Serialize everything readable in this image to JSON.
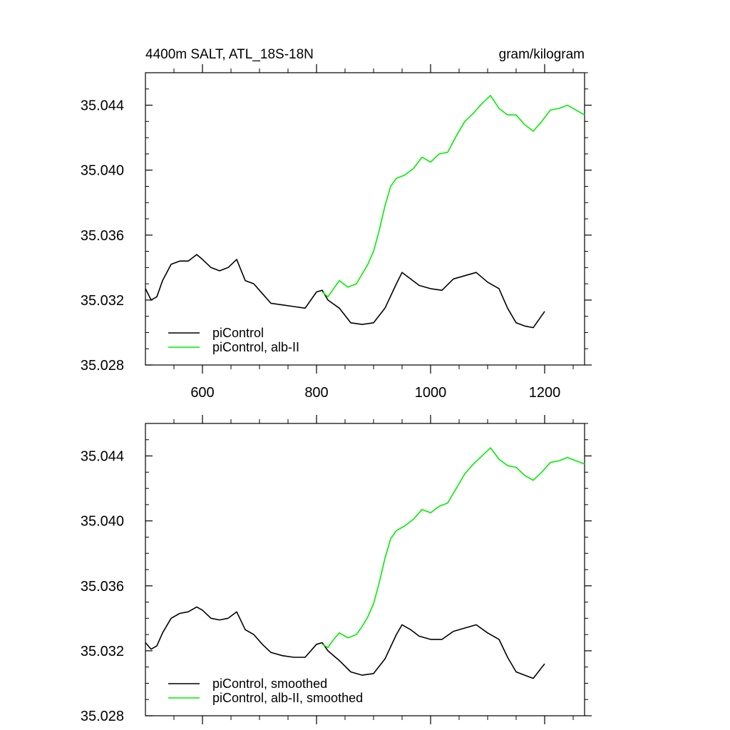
{
  "colors": {
    "black_series": "#000000",
    "green_series": "#00ee00"
  },
  "chart_data": [
    {
      "type": "line",
      "title": "4400m SALT, ATL_18S-18N",
      "units": "gram/kilogram",
      "xlim": [
        500,
        1270
      ],
      "ylim": [
        35.028,
        35.046
      ],
      "x_ticks": [
        600,
        800,
        1000,
        1200
      ],
      "y_ticks": [
        35.028,
        35.032,
        35.036,
        35.04,
        35.044
      ],
      "y_tick_labels": [
        "35.028",
        "35.032",
        "35.036",
        "35.040",
        "35.044"
      ],
      "x_tick_labels": [
        "600",
        "800",
        "1000",
        "1200"
      ],
      "legend_position": "bottom-left",
      "series": [
        {
          "name": "piControl",
          "color": "#000000",
          "x": [
            500,
            510,
            520,
            530,
            545,
            560,
            575,
            590,
            600,
            615,
            630,
            645,
            660,
            675,
            690,
            705,
            720,
            740,
            760,
            780,
            800,
            810,
            820,
            840,
            860,
            880,
            900,
            920,
            940,
            950,
            965,
            980,
            1000,
            1020,
            1040,
            1060,
            1080,
            1100,
            1120,
            1135,
            1150,
            1165,
            1180,
            1200
          ],
          "y": [
            35.0327,
            35.032,
            35.0322,
            35.0332,
            35.0342,
            35.0344,
            35.0344,
            35.0348,
            35.0345,
            35.034,
            35.0338,
            35.034,
            35.0345,
            35.0332,
            35.033,
            35.0324,
            35.0318,
            35.0317,
            35.0316,
            35.0315,
            35.0325,
            35.0326,
            35.032,
            35.0315,
            35.0306,
            35.0305,
            35.0306,
            35.0315,
            35.033,
            35.0337,
            35.0333,
            35.0329,
            35.0327,
            35.0326,
            35.0333,
            35.0335,
            35.0337,
            35.0331,
            35.0327,
            35.0315,
            35.0306,
            35.0304,
            35.0303,
            35.0313
          ]
        },
        {
          "name": "piControl, alb-II",
          "color": "#00ee00",
          "x": [
            810,
            820,
            830,
            840,
            855,
            870,
            880,
            890,
            900,
            910,
            920,
            930,
            940,
            955,
            970,
            985,
            1000,
            1015,
            1030,
            1045,
            1060,
            1075,
            1090,
            1105,
            1120,
            1135,
            1150,
            1165,
            1180,
            1195,
            1210,
            1225,
            1240,
            1255,
            1270
          ],
          "y": [
            35.0325,
            35.0322,
            35.0327,
            35.0332,
            35.0328,
            35.033,
            35.0336,
            35.0342,
            35.035,
            35.0363,
            35.0378,
            35.039,
            35.0395,
            35.0397,
            35.0401,
            35.0408,
            35.0405,
            35.041,
            35.0411,
            35.0421,
            35.043,
            35.0435,
            35.0441,
            35.0446,
            35.0438,
            35.0434,
            35.0434,
            35.0428,
            35.0424,
            35.043,
            35.0437,
            35.0438,
            35.044,
            35.0437,
            35.0434
          ]
        }
      ]
    },
    {
      "type": "line",
      "xlim": [
        500,
        1270
      ],
      "ylim": [
        35.028,
        35.046
      ],
      "x_ticks": [
        600,
        800,
        1000,
        1200
      ],
      "y_ticks": [
        35.028,
        35.032,
        35.036,
        35.04,
        35.044
      ],
      "y_tick_labels": [
        "35.028",
        "35.032",
        "35.036",
        "35.040",
        "35.044"
      ],
      "legend_position": "bottom-left",
      "series": [
        {
          "name": "piControl, smoothed",
          "color": "#000000",
          "x": [
            500,
            510,
            520,
            530,
            545,
            560,
            575,
            590,
            600,
            615,
            630,
            645,
            660,
            675,
            690,
            705,
            720,
            740,
            760,
            780,
            800,
            810,
            820,
            840,
            860,
            880,
            900,
            920,
            940,
            950,
            965,
            980,
            1000,
            1020,
            1040,
            1060,
            1080,
            1100,
            1120,
            1135,
            1150,
            1165,
            1180,
            1200
          ],
          "y": [
            35.0325,
            35.0321,
            35.0323,
            35.0331,
            35.034,
            35.0343,
            35.0344,
            35.0347,
            35.0345,
            35.034,
            35.0339,
            35.034,
            35.0344,
            35.0333,
            35.033,
            35.0324,
            35.0319,
            35.0317,
            35.0316,
            35.0316,
            35.0324,
            35.0325,
            35.032,
            35.0314,
            35.0307,
            35.0305,
            35.0306,
            35.0315,
            35.033,
            35.0336,
            35.0333,
            35.0329,
            35.0327,
            35.0327,
            35.0332,
            35.0334,
            35.0336,
            35.0331,
            35.0327,
            35.0316,
            35.0307,
            35.0305,
            35.0303,
            35.0312
          ]
        },
        {
          "name": "piControl, alb-II, smoothed",
          "color": "#00ee00",
          "x": [
            810,
            820,
            830,
            840,
            855,
            870,
            880,
            890,
            900,
            910,
            920,
            930,
            940,
            955,
            970,
            985,
            1000,
            1015,
            1030,
            1045,
            1060,
            1075,
            1090,
            1105,
            1120,
            1135,
            1150,
            1165,
            1180,
            1195,
            1210,
            1225,
            1240,
            1255,
            1270
          ],
          "y": [
            35.0324,
            35.0322,
            35.0327,
            35.0331,
            35.0328,
            35.033,
            35.0335,
            35.0341,
            35.0349,
            35.0362,
            35.0377,
            35.0389,
            35.0394,
            35.0397,
            35.0401,
            35.0407,
            35.0405,
            35.0409,
            35.0411,
            35.042,
            35.0429,
            35.0435,
            35.044,
            35.0445,
            35.0438,
            35.0434,
            35.0433,
            35.0428,
            35.0425,
            35.043,
            35.0436,
            35.0437,
            35.0439,
            35.0437,
            35.0435
          ]
        }
      ]
    }
  ]
}
